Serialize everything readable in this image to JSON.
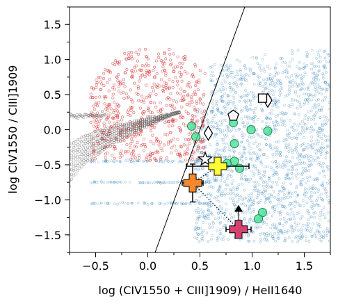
{
  "chart_data": {
    "type": "scatter",
    "xlabel": "log (CIV1550 + CIII]1909) / HeII1640",
    "ylabel": "log CIV1550 / CIII]1909",
    "xlim": [
      -0.75,
      1.75
    ],
    "ylim": [
      -1.75,
      1.75
    ],
    "x_ticks": [
      -0.5,
      0.0,
      0.5,
      1.0,
      1.5
    ],
    "x_tick_labels": [
      "−0.5",
      "0.0",
      "0.5",
      "1.0",
      "1.5"
    ],
    "y_ticks": [
      1.5,
      1.0,
      0.5,
      0.0,
      -0.5,
      -1.0,
      -1.5
    ],
    "y_tick_labels": [
      "1.5",
      "1.0",
      "0.5",
      "0.0",
      "−0.5",
      "−1.0",
      "−1.5"
    ],
    "grid": false,
    "legend": "none",
    "colors": {
      "agn_models": "#d62728",
      "sf_models": "#1f77b4",
      "shock_models": "#555555",
      "circles": "#3fdf8f",
      "yellow_cross": "#ffff33",
      "orange_cross": "#f4882c",
      "magenta_cross": "#d4436f"
    },
    "demarcation_line": {
      "points": [
        [
          0.07,
          -1.75
        ],
        [
          0.93,
          1.75
        ]
      ]
    },
    "dotted_connector": {
      "points": [
        [
          0.67,
          -0.52
        ],
        [
          0.43,
          -0.76
        ],
        [
          0.87,
          -1.42
        ]
      ]
    },
    "circles": [
      {
        "x": 0.42,
        "y": 0.05
      },
      {
        "x": 0.46,
        "y": -0.1
      },
      {
        "x": 0.82,
        "y": 0.1
      },
      {
        "x": 0.99,
        "y": 0.0
      },
      {
        "x": 1.15,
        "y": -0.02
      },
      {
        "x": 0.83,
        "y": -0.2
      },
      {
        "x": 0.83,
        "y": -0.45
      },
      {
        "x": 0.76,
        "y": -0.48
      },
      {
        "x": 0.88,
        "y": -0.55
      },
      {
        "x": 1.1,
        "y": -1.18
      },
      {
        "x": 1.06,
        "y": -1.27
      }
    ],
    "open_markers": [
      {
        "shape": "diamond",
        "x": 1.15,
        "y": 0.42
      },
      {
        "shape": "square",
        "x": 1.1,
        "y": 0.45
      },
      {
        "shape": "pentagon",
        "x": 0.82,
        "y": 0.2
      },
      {
        "shape": "diamond",
        "x": 0.58,
        "y": -0.05
      },
      {
        "shape": "star",
        "x": 0.55,
        "y": -0.42
      }
    ],
    "measurements": [
      {
        "name": "yellow",
        "x": 0.67,
        "y": -0.52,
        "xerr": 0.3,
        "yerr": 0.1
      },
      {
        "name": "orange",
        "x": 0.43,
        "y": -0.76,
        "xerr": 0.1,
        "yerr": 0.27
      },
      {
        "name": "magenta",
        "x": 0.87,
        "y": -1.42,
        "xerr": 0.12,
        "yerr": 0.12,
        "lower_limit_x": 0.87,
        "lower_limit_y": -1.12
      }
    ]
  }
}
